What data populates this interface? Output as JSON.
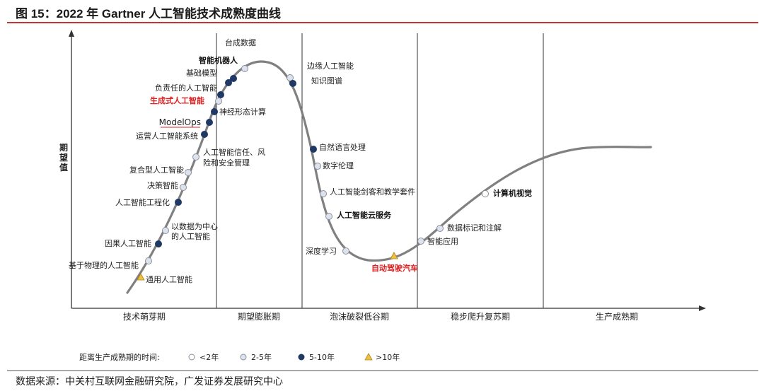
{
  "header": {
    "title": "图 15：2022 年 Gartner 人工智能技术成熟度曲线"
  },
  "footer": {
    "source": "数据来源：中关村互联网金融研究院，广发证券发展研究中心"
  },
  "diagram": {
    "y_axis_label": "期望值",
    "phases": [
      "技术萌芽期",
      "期望膨胀期",
      "泡沫破裂低谷期",
      "稳步爬升复苏期",
      "生产成熟期"
    ],
    "legend": {
      "title": "距离生产成熟期的时间:",
      "items": [
        {
          "label": "<2年",
          "marker": "circle-white"
        },
        {
          "label": "2-5年",
          "marker": "circle-light"
        },
        {
          "label": "5-10年",
          "marker": "circle-dark"
        },
        {
          "label": ">10年",
          "marker": "triangle"
        }
      ]
    },
    "colors": {
      "curve": "#7f7f7f",
      "dark_marker": "#1f3864",
      "light_marker": "#dde3ee",
      "triangle": "#f0c040",
      "highlight_text": "#e02020"
    },
    "technologies": [
      {
        "label": "台成数据",
        "marker": "circle-light"
      },
      {
        "label": "智能机器人",
        "marker": "circle-dark",
        "emphasis": "bold"
      },
      {
        "label": "基础模型",
        "marker": "circle-dark"
      },
      {
        "label": "负责任的人工智能",
        "marker": "circle-dark"
      },
      {
        "label": "生成式人工智能",
        "marker": "circle-light",
        "emphasis": "red"
      },
      {
        "label": "神经形态计算",
        "marker": "circle-dark"
      },
      {
        "label": "ModelOps",
        "marker": "circle-dark"
      },
      {
        "label": "运营人工智能系统",
        "marker": "circle-dark"
      },
      {
        "label": "人工智能信任、风",
        "label2": "险和安全管理",
        "marker": "circle-light"
      },
      {
        "label": "复合型人工智能",
        "marker": "circle-light"
      },
      {
        "label": "决策智能",
        "marker": "circle-light"
      },
      {
        "label": "人工智能工程化",
        "marker": "circle-dark"
      },
      {
        "label": "以数据为中心",
        "label2": "的人工智能",
        "marker": "circle-light"
      },
      {
        "label": "因果人工智能",
        "marker": "circle-dark"
      },
      {
        "label": "基于物理的人工智能",
        "marker": "circle-light"
      },
      {
        "label": "通用人工智能",
        "marker": "triangle"
      },
      {
        "label": "边缘人工智能",
        "marker": "circle-light"
      },
      {
        "label": "知识图谱",
        "marker": "circle-dark"
      },
      {
        "label": "自然语言处理",
        "marker": "circle-dark"
      },
      {
        "label": "数字伦理",
        "marker": "circle-light"
      },
      {
        "label": "人工智能剑客和教学套件",
        "marker": "circle-light"
      },
      {
        "label": "人工智能云服务",
        "marker": "circle-light",
        "emphasis": "bold"
      },
      {
        "label": "深度学习",
        "marker": "circle-light"
      },
      {
        "label": "自动驾驶汽车",
        "marker": "triangle",
        "emphasis": "red"
      },
      {
        "label": "智能应用",
        "marker": "circle-light"
      },
      {
        "label": "数据标记和注解",
        "marker": "circle-light"
      },
      {
        "label": "计算机视觉",
        "marker": "circle-white",
        "emphasis": "bold"
      }
    ]
  }
}
